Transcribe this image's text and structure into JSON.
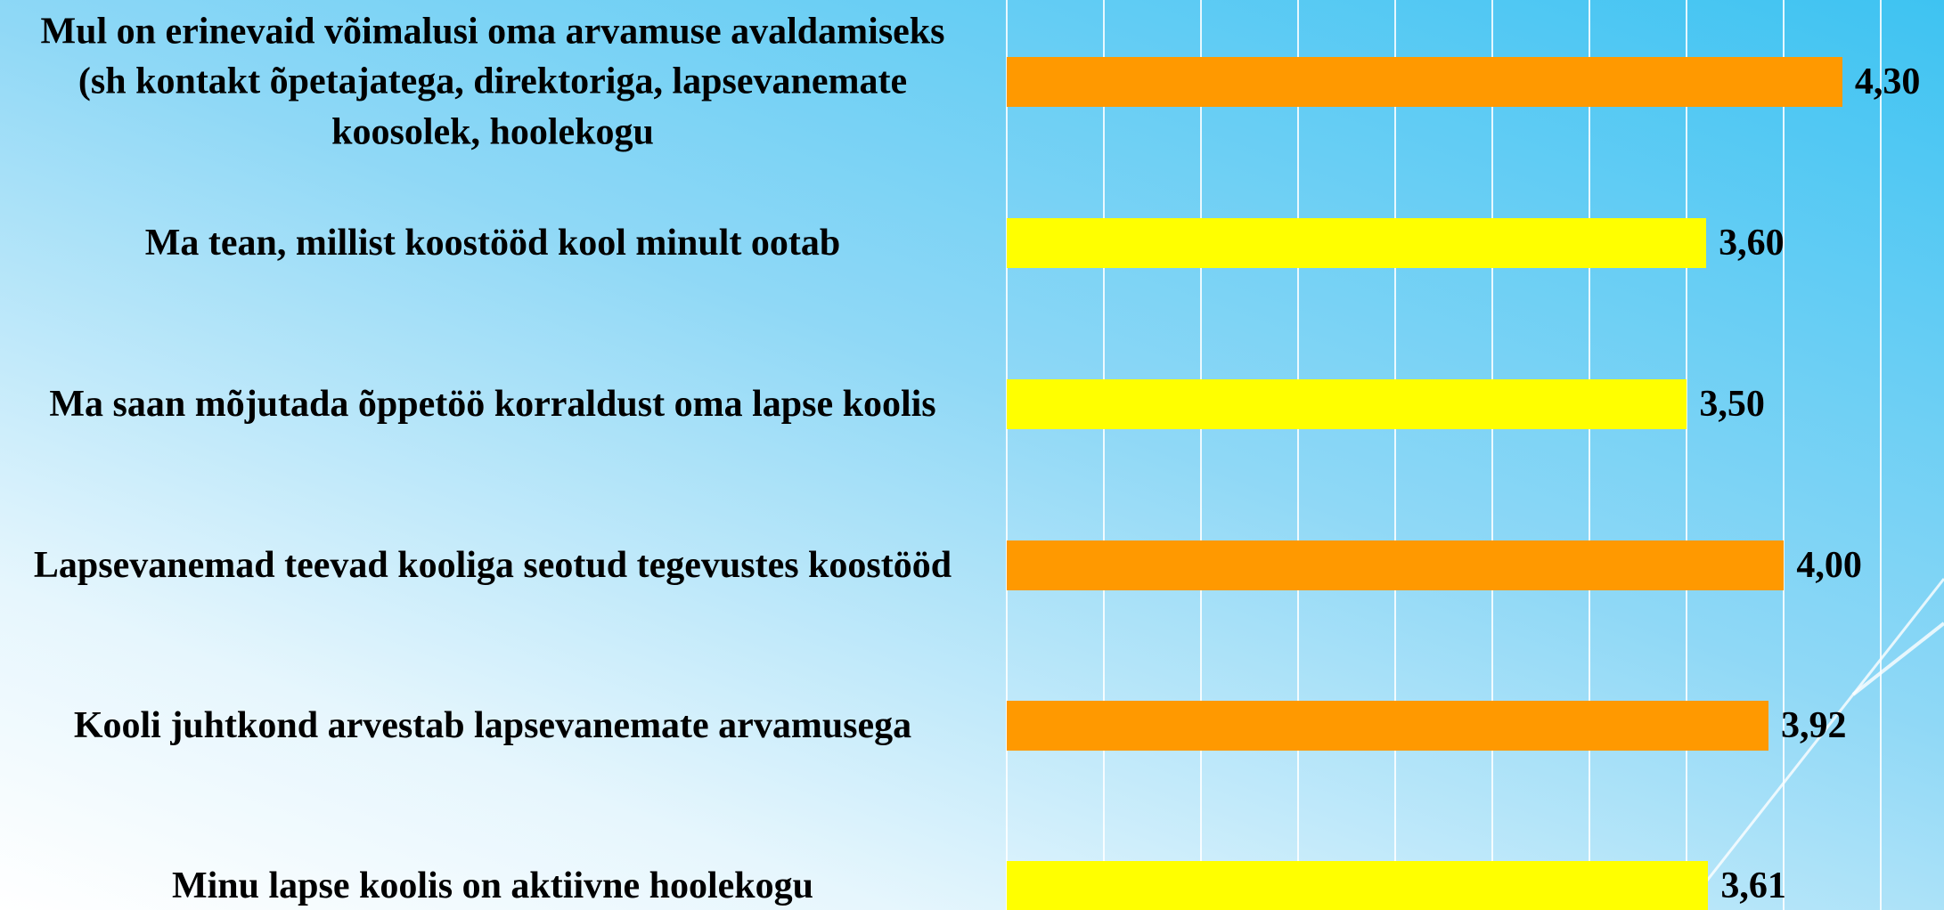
{
  "chart_data": {
    "type": "bar",
    "orientation": "horizontal",
    "categories": [
      "Mul on erinevaid võimalusi oma arvamuse avaldamiseks (sh kontakt õpetajatega, direktoriga, lapsevanemate koosolek, hoolekogu",
      "Ma tean, millist koostööd kool minult ootab",
      "Ma saan mõjutada õppetöö korraldust oma lapse koolis",
      "Lapsevanemad teevad kooliga seotud tegevustes koostööd",
      "Kooli juhtkond arvestab lapsevanemate arvamusega",
      "Minu lapse koolis on aktiivne hoolekogu"
    ],
    "values": [
      4.3,
      3.6,
      3.5,
      4.0,
      3.92,
      3.61
    ],
    "value_labels": [
      "4,30",
      "3,60",
      "3,50",
      "4,00",
      "3,92",
      "3,61"
    ],
    "colors": [
      "#ff9900",
      "#ffff00",
      "#ffff00",
      "#ff9900",
      "#ff9900",
      "#ffff00"
    ],
    "xlim": [
      0,
      4.5
    ],
    "xticks": [
      0,
      0.5,
      1,
      1.5,
      2,
      2.5,
      3,
      3.5,
      4,
      4.5
    ],
    "grid": true
  }
}
